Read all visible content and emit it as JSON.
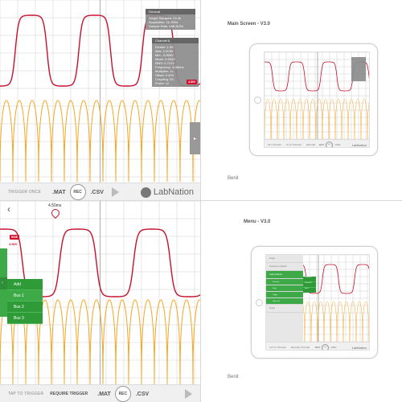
{
  "colors": {
    "wave_red": "#c8102e",
    "wave_orange": "#f6a623",
    "green": "#3daa47",
    "grid": "#cfcfcf"
  },
  "top_left": {
    "panel_general": {
      "title": "General",
      "lines": [
        "Scope Samples: 24.4k",
        "Acquisition: 16.25Hz",
        "Sample Rate: 488.3kS/s"
      ]
    },
    "panel_channel": {
      "title": "Channel A",
      "lines": [
        "Divider: 1.00",
        "Max: 1.003V",
        "Min: -0.995V",
        "Mean: 0.004V",
        "RMS: 0.712V",
        "Frequency: 4.08kHz",
        "Multiplier: 1x",
        "Offset: 0.00V",
        "Coupling: DC",
        "Probe: x1"
      ]
    },
    "marker_label": "4.50V",
    "side_tab_arrow": "▸",
    "toolbar": {
      "trigger_text": "TRIGGER ONCE",
      "mat": ".MAT",
      "rec": "REC",
      "csv": ".CSV",
      "logo": "LabNation"
    }
  },
  "top_right": {
    "caption": "Main Screen - V3.0",
    "footer": "Benit",
    "toolbar": {
      "left": "SET TRIGGER",
      "mid": "AUTO TRIGGER",
      "mid2": "REQUIRE",
      "mat": ".MAT",
      "rec": "REC",
      "csv": ".CSV",
      "logo": "LabNation"
    }
  },
  "bottom_left": {
    "back_icon": "back",
    "time_label": "4.50ms",
    "marker_label": "RISE",
    "marker_value": "4.50V",
    "menu_popup": [
      "Add",
      "Bus 1",
      "Bus 2",
      "Bus 3"
    ],
    "toolbar": {
      "left": "TAP TO TRIGGER",
      "mid": "REQUIRE TRIGGER",
      "mat": ".MAT",
      "rec": "REC",
      "csv": ".CSV"
    }
  },
  "bottom_right": {
    "caption": "Menu - V3.0",
    "footer": "Benit",
    "menu": [
      "Scope",
      "Frequency Analysis",
      "Logic Analyzer",
      "Decoders",
      "Scale",
      "Trigger",
      "Horizontal",
      "Scope"
    ],
    "submenu": [
      "Channel 1",
      "Channel 2",
      "Bus 1"
    ],
    "toolbar": {
      "left": "TAP TO TRIGGER",
      "mid": "REQUIRE TRIGGER",
      "mat": ".MAT",
      "rec": "REC",
      "csv": ".CSV",
      "logo": "LabNation"
    }
  }
}
